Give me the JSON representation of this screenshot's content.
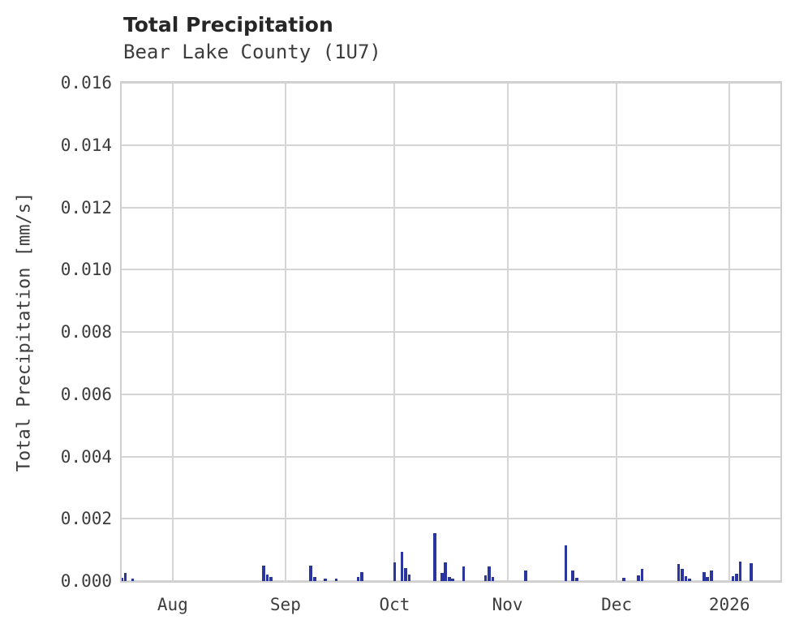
{
  "header": {
    "title": "Total Precipitation",
    "subtitle": "Bear Lake County (1U7)"
  },
  "colors": {
    "background": "#ffffff",
    "frame": "#cfcfcf",
    "grid": "#d5d5d5",
    "bar": "#2a359d",
    "title_text": "#262626",
    "tick_text": "#3d3d3d"
  },
  "chart_data": {
    "type": "bar",
    "title": "Total Precipitation",
    "subtitle": "Bear Lake County (1U7)",
    "xlabel": "",
    "ylabel": "Total Precipitation [mm/s]",
    "ylim": [
      0,
      0.016
    ],
    "grid": true,
    "legend": "none",
    "bar_color": "#2a359d",
    "yticks": [
      {
        "value": 0.0,
        "label": "0.000"
      },
      {
        "value": 0.002,
        "label": "0.002"
      },
      {
        "value": 0.004,
        "label": "0.004"
      },
      {
        "value": 0.006,
        "label": "0.006"
      },
      {
        "value": 0.008,
        "label": "0.008"
      },
      {
        "value": 0.01,
        "label": "0.010"
      },
      {
        "value": 0.012,
        "label": "0.012"
      },
      {
        "value": 0.014,
        "label": "0.014"
      },
      {
        "value": 0.016,
        "label": "0.016"
      }
    ],
    "x_range": [
      "2025-07-18",
      "2026-01-15"
    ],
    "xticks": [
      {
        "date": "2025-08-01",
        "label": "Aug"
      },
      {
        "date": "2025-09-01",
        "label": "Sep"
      },
      {
        "date": "2025-10-01",
        "label": "Oct"
      },
      {
        "date": "2025-11-01",
        "label": "Nov"
      },
      {
        "date": "2025-12-01",
        "label": "Dec"
      },
      {
        "date": "2026-01-01",
        "label": "2026"
      }
    ],
    "bars": [
      {
        "date": "2025-07-18",
        "value": 0.0001
      },
      {
        "date": "2025-07-19",
        "value": 0.00026
      },
      {
        "date": "2025-07-21",
        "value": 8e-05
      },
      {
        "date": "2025-08-26",
        "value": 0.0005
      },
      {
        "date": "2025-08-27",
        "value": 0.0002
      },
      {
        "date": "2025-08-28",
        "value": 0.00013
      },
      {
        "date": "2025-09-08",
        "value": 0.0005
      },
      {
        "date": "2025-09-09",
        "value": 0.00014
      },
      {
        "date": "2025-09-12",
        "value": 8e-05
      },
      {
        "date": "2025-09-15",
        "value": 8e-05
      },
      {
        "date": "2025-09-21",
        "value": 0.00012
      },
      {
        "date": "2025-09-22",
        "value": 0.00028
      },
      {
        "date": "2025-10-01",
        "value": 0.0006
      },
      {
        "date": "2025-10-03",
        "value": 0.00095
      },
      {
        "date": "2025-10-04",
        "value": 0.00042
      },
      {
        "date": "2025-10-05",
        "value": 0.0002
      },
      {
        "date": "2025-10-12",
        "value": 0.00155
      },
      {
        "date": "2025-10-14",
        "value": 0.00026
      },
      {
        "date": "2025-10-15",
        "value": 0.0006
      },
      {
        "date": "2025-10-16",
        "value": 0.00014
      },
      {
        "date": "2025-10-17",
        "value": 8e-05
      },
      {
        "date": "2025-10-20",
        "value": 0.00047
      },
      {
        "date": "2025-10-26",
        "value": 0.00018
      },
      {
        "date": "2025-10-27",
        "value": 0.00046
      },
      {
        "date": "2025-10-28",
        "value": 0.00012
      },
      {
        "date": "2025-11-06",
        "value": 0.00035
      },
      {
        "date": "2025-11-17",
        "value": 0.00115
      },
      {
        "date": "2025-11-19",
        "value": 0.00034
      },
      {
        "date": "2025-11-20",
        "value": 0.0001
      },
      {
        "date": "2025-12-03",
        "value": 0.0001
      },
      {
        "date": "2025-12-07",
        "value": 0.00018
      },
      {
        "date": "2025-12-08",
        "value": 0.00038
      },
      {
        "date": "2025-12-18",
        "value": 0.00056
      },
      {
        "date": "2025-12-19",
        "value": 0.00038
      },
      {
        "date": "2025-12-20",
        "value": 0.00015
      },
      {
        "date": "2025-12-21",
        "value": 8e-05
      },
      {
        "date": "2025-12-25",
        "value": 0.0003
      },
      {
        "date": "2025-12-26",
        "value": 0.00013
      },
      {
        "date": "2025-12-27",
        "value": 0.00034
      },
      {
        "date": "2026-01-02",
        "value": 0.00016
      },
      {
        "date": "2026-01-03",
        "value": 0.00024
      },
      {
        "date": "2026-01-04",
        "value": 0.00063
      },
      {
        "date": "2026-01-07",
        "value": 0.00058
      }
    ]
  }
}
